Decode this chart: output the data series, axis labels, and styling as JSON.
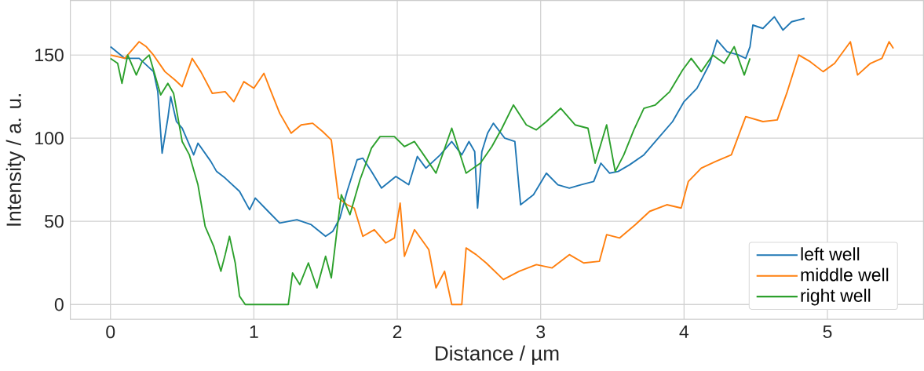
{
  "chart_data": {
    "type": "line",
    "xlabel": "Distance / µm",
    "ylabel": "Intensity / a. u.",
    "xlim": [
      -0.28,
      5.67
    ],
    "ylim": [
      -8.9,
      182.8
    ],
    "xticks": [
      0,
      1,
      2,
      3,
      4,
      5
    ],
    "yticks": [
      0,
      50,
      100,
      150
    ],
    "grid": true,
    "legend": "bottom right",
    "line_style": "solid",
    "marker": "none",
    "series": [
      {
        "name": "left well",
        "color": "#1f77b4",
        "x": [
          0,
          0.1,
          0.2,
          0.3,
          0.33,
          0.36,
          0.4,
          0.42,
          0.46,
          0.5,
          0.58,
          0.61,
          0.7,
          0.74,
          0.8,
          0.9,
          0.97,
          1.01,
          1.1,
          1.18,
          1.3,
          1.4,
          1.5,
          1.55,
          1.6,
          1.65,
          1.72,
          1.76,
          1.82,
          1.89,
          1.99,
          2.08,
          2.14,
          2.2,
          2.3,
          2.38,
          2.45,
          2.5,
          2.54,
          2.56,
          2.59,
          2.63,
          2.67,
          2.75,
          2.82,
          2.86,
          2.95,
          3.04,
          3.12,
          3.2,
          3.28,
          3.37,
          3.42,
          3.48,
          3.54,
          3.62,
          3.72,
          3.8,
          3.92,
          4.0,
          4.09,
          4.18,
          4.23,
          4.3,
          4.38,
          4.43,
          4.46,
          4.48,
          4.55,
          4.63,
          4.69,
          4.75,
          4.84
        ],
        "values": [
          155,
          148,
          148,
          140,
          128,
          91,
          112,
          125,
          110,
          106,
          90,
          97,
          86,
          80,
          76,
          68,
          57,
          64,
          56,
          49,
          51,
          48,
          41,
          44,
          52,
          68,
          87,
          88,
          80,
          70,
          77,
          72,
          89,
          82,
          90,
          98,
          90,
          98,
          92,
          58,
          92,
          103,
          109,
          100,
          98,
          60,
          66,
          79,
          72,
          70,
          72,
          74,
          85,
          79,
          80,
          84,
          90,
          98,
          110,
          122,
          130,
          145,
          159,
          152,
          150,
          148,
          155,
          168,
          166,
          173,
          165,
          170,
          172
        ]
      },
      {
        "name": "middle well",
        "color": "#ff7f0e",
        "x": [
          0,
          0.1,
          0.2,
          0.25,
          0.3,
          0.38,
          0.45,
          0.5,
          0.57,
          0.63,
          0.71,
          0.8,
          0.86,
          0.93,
          1.0,
          1.07,
          1.12,
          1.18,
          1.26,
          1.33,
          1.41,
          1.48,
          1.54,
          1.59,
          1.65,
          1.7,
          1.76,
          1.84,
          1.92,
          1.98,
          2.02,
          2.05,
          2.12,
          2.22,
          2.27,
          2.33,
          2.38,
          2.45,
          2.48,
          2.55,
          2.62,
          2.74,
          2.85,
          2.97,
          3.08,
          3.2,
          3.3,
          3.41,
          3.46,
          3.55,
          3.66,
          3.76,
          3.88,
          3.98,
          4.03,
          4.12,
          4.22,
          4.33,
          4.43,
          4.55,
          4.65,
          4.72,
          4.8,
          4.88,
          4.97,
          5.05,
          5.16,
          5.21,
          5.3,
          5.38,
          5.43,
          5.46
        ],
        "values": [
          150,
          148,
          158,
          155,
          150,
          140,
          135,
          131,
          148,
          140,
          127,
          128,
          122,
          134,
          130,
          139,
          128,
          115,
          103,
          108,
          109,
          104,
          99,
          64,
          60,
          58,
          41,
          45,
          37,
          40,
          61,
          29,
          45,
          33,
          10,
          20,
          0,
          0,
          34,
          30,
          25,
          15,
          20,
          24,
          22,
          30,
          25,
          26,
          42,
          40,
          48,
          56,
          60,
          58,
          74,
          82,
          86,
          90,
          113,
          110,
          111,
          128,
          150,
          146,
          140,
          145,
          158,
          138,
          145,
          148,
          158,
          154
        ]
      },
      {
        "name": "right well",
        "color": "#2ca02c",
        "x": [
          0,
          0.05,
          0.08,
          0.12,
          0.18,
          0.22,
          0.27,
          0.31,
          0.35,
          0.4,
          0.44,
          0.5,
          0.55,
          0.61,
          0.66,
          0.72,
          0.77,
          0.8,
          0.83,
          0.87,
          0.9,
          0.94,
          1.24,
          1.27,
          1.32,
          1.38,
          1.44,
          1.5,
          1.54,
          1.58,
          1.61,
          1.67,
          1.74,
          1.82,
          1.88,
          1.98,
          2.05,
          2.12,
          2.2,
          2.27,
          2.38,
          2.48,
          2.58,
          2.66,
          2.73,
          2.81,
          2.9,
          2.97,
          3.04,
          3.14,
          3.24,
          3.33,
          3.38,
          3.46,
          3.52,
          3.58,
          3.65,
          3.72,
          3.8,
          3.9,
          3.99,
          4.05,
          4.12,
          4.2,
          4.28,
          4.35,
          4.42,
          4.46
        ],
        "values": [
          148,
          145,
          133,
          150,
          138,
          146,
          150,
          138,
          126,
          133,
          127,
          98,
          90,
          72,
          47,
          35,
          20,
          30,
          41,
          25,
          5,
          0,
          0,
          19,
          12,
          25,
          10,
          29,
          16,
          45,
          66,
          54,
          75,
          94,
          101,
          101,
          95,
          98,
          88,
          79,
          106,
          79,
          85,
          95,
          106,
          120,
          108,
          105,
          110,
          118,
          108,
          106,
          85,
          108,
          80,
          90,
          105,
          118,
          120,
          128,
          141,
          148,
          140,
          150,
          145,
          155,
          138,
          148
        ]
      }
    ]
  }
}
